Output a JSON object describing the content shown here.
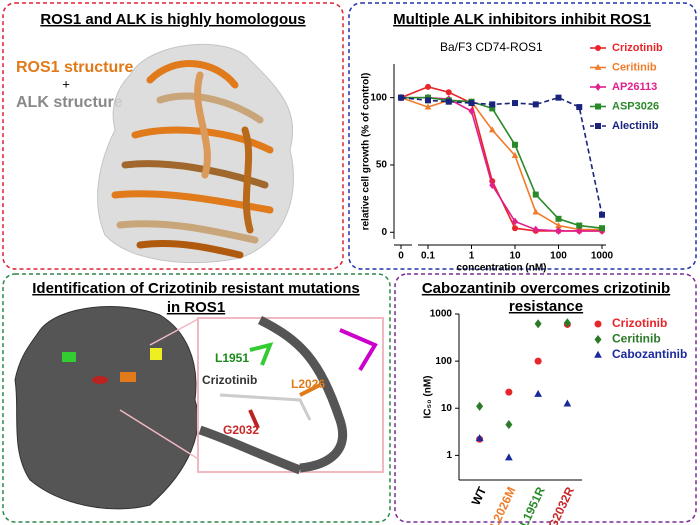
{
  "panels": [
    {
      "title": [
        "ROS1 and ALK is highly homologous"
      ],
      "labels": [
        "ROS1 structure",
        "+",
        "ALK structure"
      ]
    },
    {
      "title": [
        "Multiple ALK inhibitors inhibit ROS1"
      ]
    },
    {
      "title": [
        "Identification of Crizotinib resistant mutations",
        "in ROS1"
      ],
      "labels": [
        "L1951",
        "Crizotinib",
        "L2026",
        "G2032"
      ]
    },
    {
      "title": [
        "Cabozantinib overcomes crizotinib",
        "resistance"
      ]
    }
  ],
  "chart_data": [
    {
      "type": "line",
      "annotation": "Ba/F3 CD74-ROS1",
      "x_label": "concentration (nM)",
      "y_label": "relative cell growth (% of control)",
      "x": [
        0,
        0.1,
        0.3,
        1,
        3,
        10,
        30,
        100,
        300,
        1000
      ],
      "xlim": [
        0,
        1000
      ],
      "xticks": [
        0,
        0.1,
        1,
        10,
        100,
        1000
      ],
      "log_x": true,
      "ylim": [
        -5,
        125
      ],
      "yticks": [
        0,
        50,
        100
      ],
      "series": [
        {
          "name": "Crizotinib",
          "color": "#e8252a",
          "marker": "circle",
          "dash": false,
          "values": [
            100,
            108,
            104,
            96,
            38,
            3,
            1,
            1,
            1,
            1
          ]
        },
        {
          "name": "Ceritinib",
          "color": "#f07c2a",
          "marker": "triangle",
          "dash": false,
          "values": [
            100,
            93,
            98,
            97,
            76,
            57,
            15,
            5,
            2,
            2
          ]
        },
        {
          "name": "AP26113",
          "color": "#e0208c",
          "marker": "diamond",
          "dash": false,
          "values": [
            100,
            100,
            99,
            90,
            35,
            8,
            2,
            1,
            1,
            1
          ]
        },
        {
          "name": "ASP3026",
          "color": "#2a8a2a",
          "marker": "square",
          "dash": false,
          "values": [
            100,
            100,
            98,
            97,
            92,
            65,
            28,
            10,
            5,
            3
          ]
        },
        {
          "name": "Alectinib",
          "color": "#1a237e",
          "marker": "square",
          "dash": true,
          "values": [
            100,
            98,
            97,
            96,
            95,
            96,
            95,
            100,
            93,
            13
          ]
        }
      ]
    },
    {
      "type": "scatter",
      "y_label": "IC₅₀ (nM)",
      "categories": [
        "WT",
        "L2026M",
        "L1951R",
        "G2032R"
      ],
      "category_colors": [
        "#000000",
        "#f07c2a",
        "#2a8a2a",
        "#c62828"
      ],
      "log_y": true,
      "ylim": [
        0.3,
        1000
      ],
      "yticks": [
        1,
        10,
        100,
        1000
      ],
      "series": [
        {
          "name": "Crizotinib",
          "color": "#e8252a",
          "marker": "circle",
          "values": [
            2.2,
            22,
            100,
            600
          ]
        },
        {
          "name": "Ceritinib",
          "color": "#2a7a2a",
          "marker": "diamond",
          "values": [
            11,
            4.5,
            620,
            650
          ]
        },
        {
          "name": "Cabozantinib",
          "color": "#1a2a9e",
          "marker": "triangle",
          "values": [
            2.3,
            0.9,
            20,
            12.5
          ]
        }
      ]
    }
  ]
}
